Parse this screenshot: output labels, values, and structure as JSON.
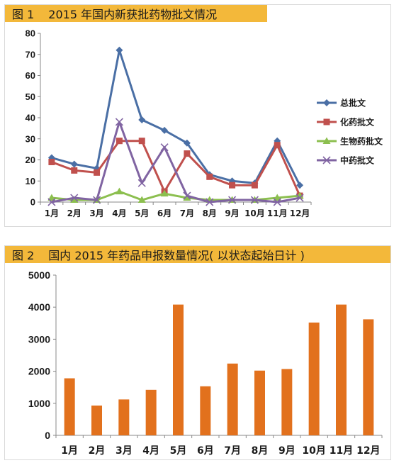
{
  "figure1": {
    "title_num": "图 1",
    "title_text": "2015 年国内新获批药物批文情况"
  },
  "figure2": {
    "title_num": "图 2",
    "title_text": "国内 2015 年药品申报数量情况( 以状态起始日计 )"
  },
  "chart_data": [
    {
      "type": "line",
      "categories": [
        "1月",
        "2月",
        "3月",
        "4月",
        "5月",
        "6月",
        "7月",
        "8月",
        "9月",
        "10月",
        "11月",
        "12月"
      ],
      "ylim": [
        0,
        80
      ],
      "yticks": [
        0,
        10,
        20,
        30,
        40,
        50,
        60,
        70,
        80
      ],
      "grid": false,
      "legend": "right",
      "series": [
        {
          "name": "总批文",
          "color": "#4a6fa5",
          "marker": "diamond",
          "values": [
            21,
            18,
            16,
            72,
            39,
            34,
            28,
            13,
            10,
            9,
            29,
            8
          ]
        },
        {
          "name": "化药批文",
          "color": "#c0504d",
          "marker": "square",
          "values": [
            19,
            15,
            14,
            29,
            29,
            5,
            23,
            12,
            8,
            8,
            27,
            3
          ]
        },
        {
          "name": "生物药批文",
          "color": "#8cbf4f",
          "marker": "triangle",
          "values": [
            2,
            1,
            1,
            5,
            1,
            4,
            2,
            1,
            1,
            1,
            2,
            3
          ]
        },
        {
          "name": "中药批文",
          "color": "#8064a2",
          "marker": "x",
          "values": [
            0,
            2,
            1,
            38,
            9,
            26,
            3,
            0,
            1,
            1,
            0,
            2
          ]
        }
      ]
    },
    {
      "type": "bar",
      "categories": [
        "1月",
        "2月",
        "3月",
        "4月",
        "5月",
        "6月",
        "7月",
        "8月",
        "9月",
        "10月",
        "11月",
        "12月"
      ],
      "ylim": [
        0,
        5000
      ],
      "yticks": [
        0,
        1000,
        2000,
        3000,
        4000,
        5000
      ],
      "grid": false,
      "color": "#e2711d",
      "values": [
        1780,
        930,
        1120,
        1420,
        4080,
        1530,
        2240,
        2020,
        2070,
        3520,
        4080,
        3620
      ]
    }
  ]
}
